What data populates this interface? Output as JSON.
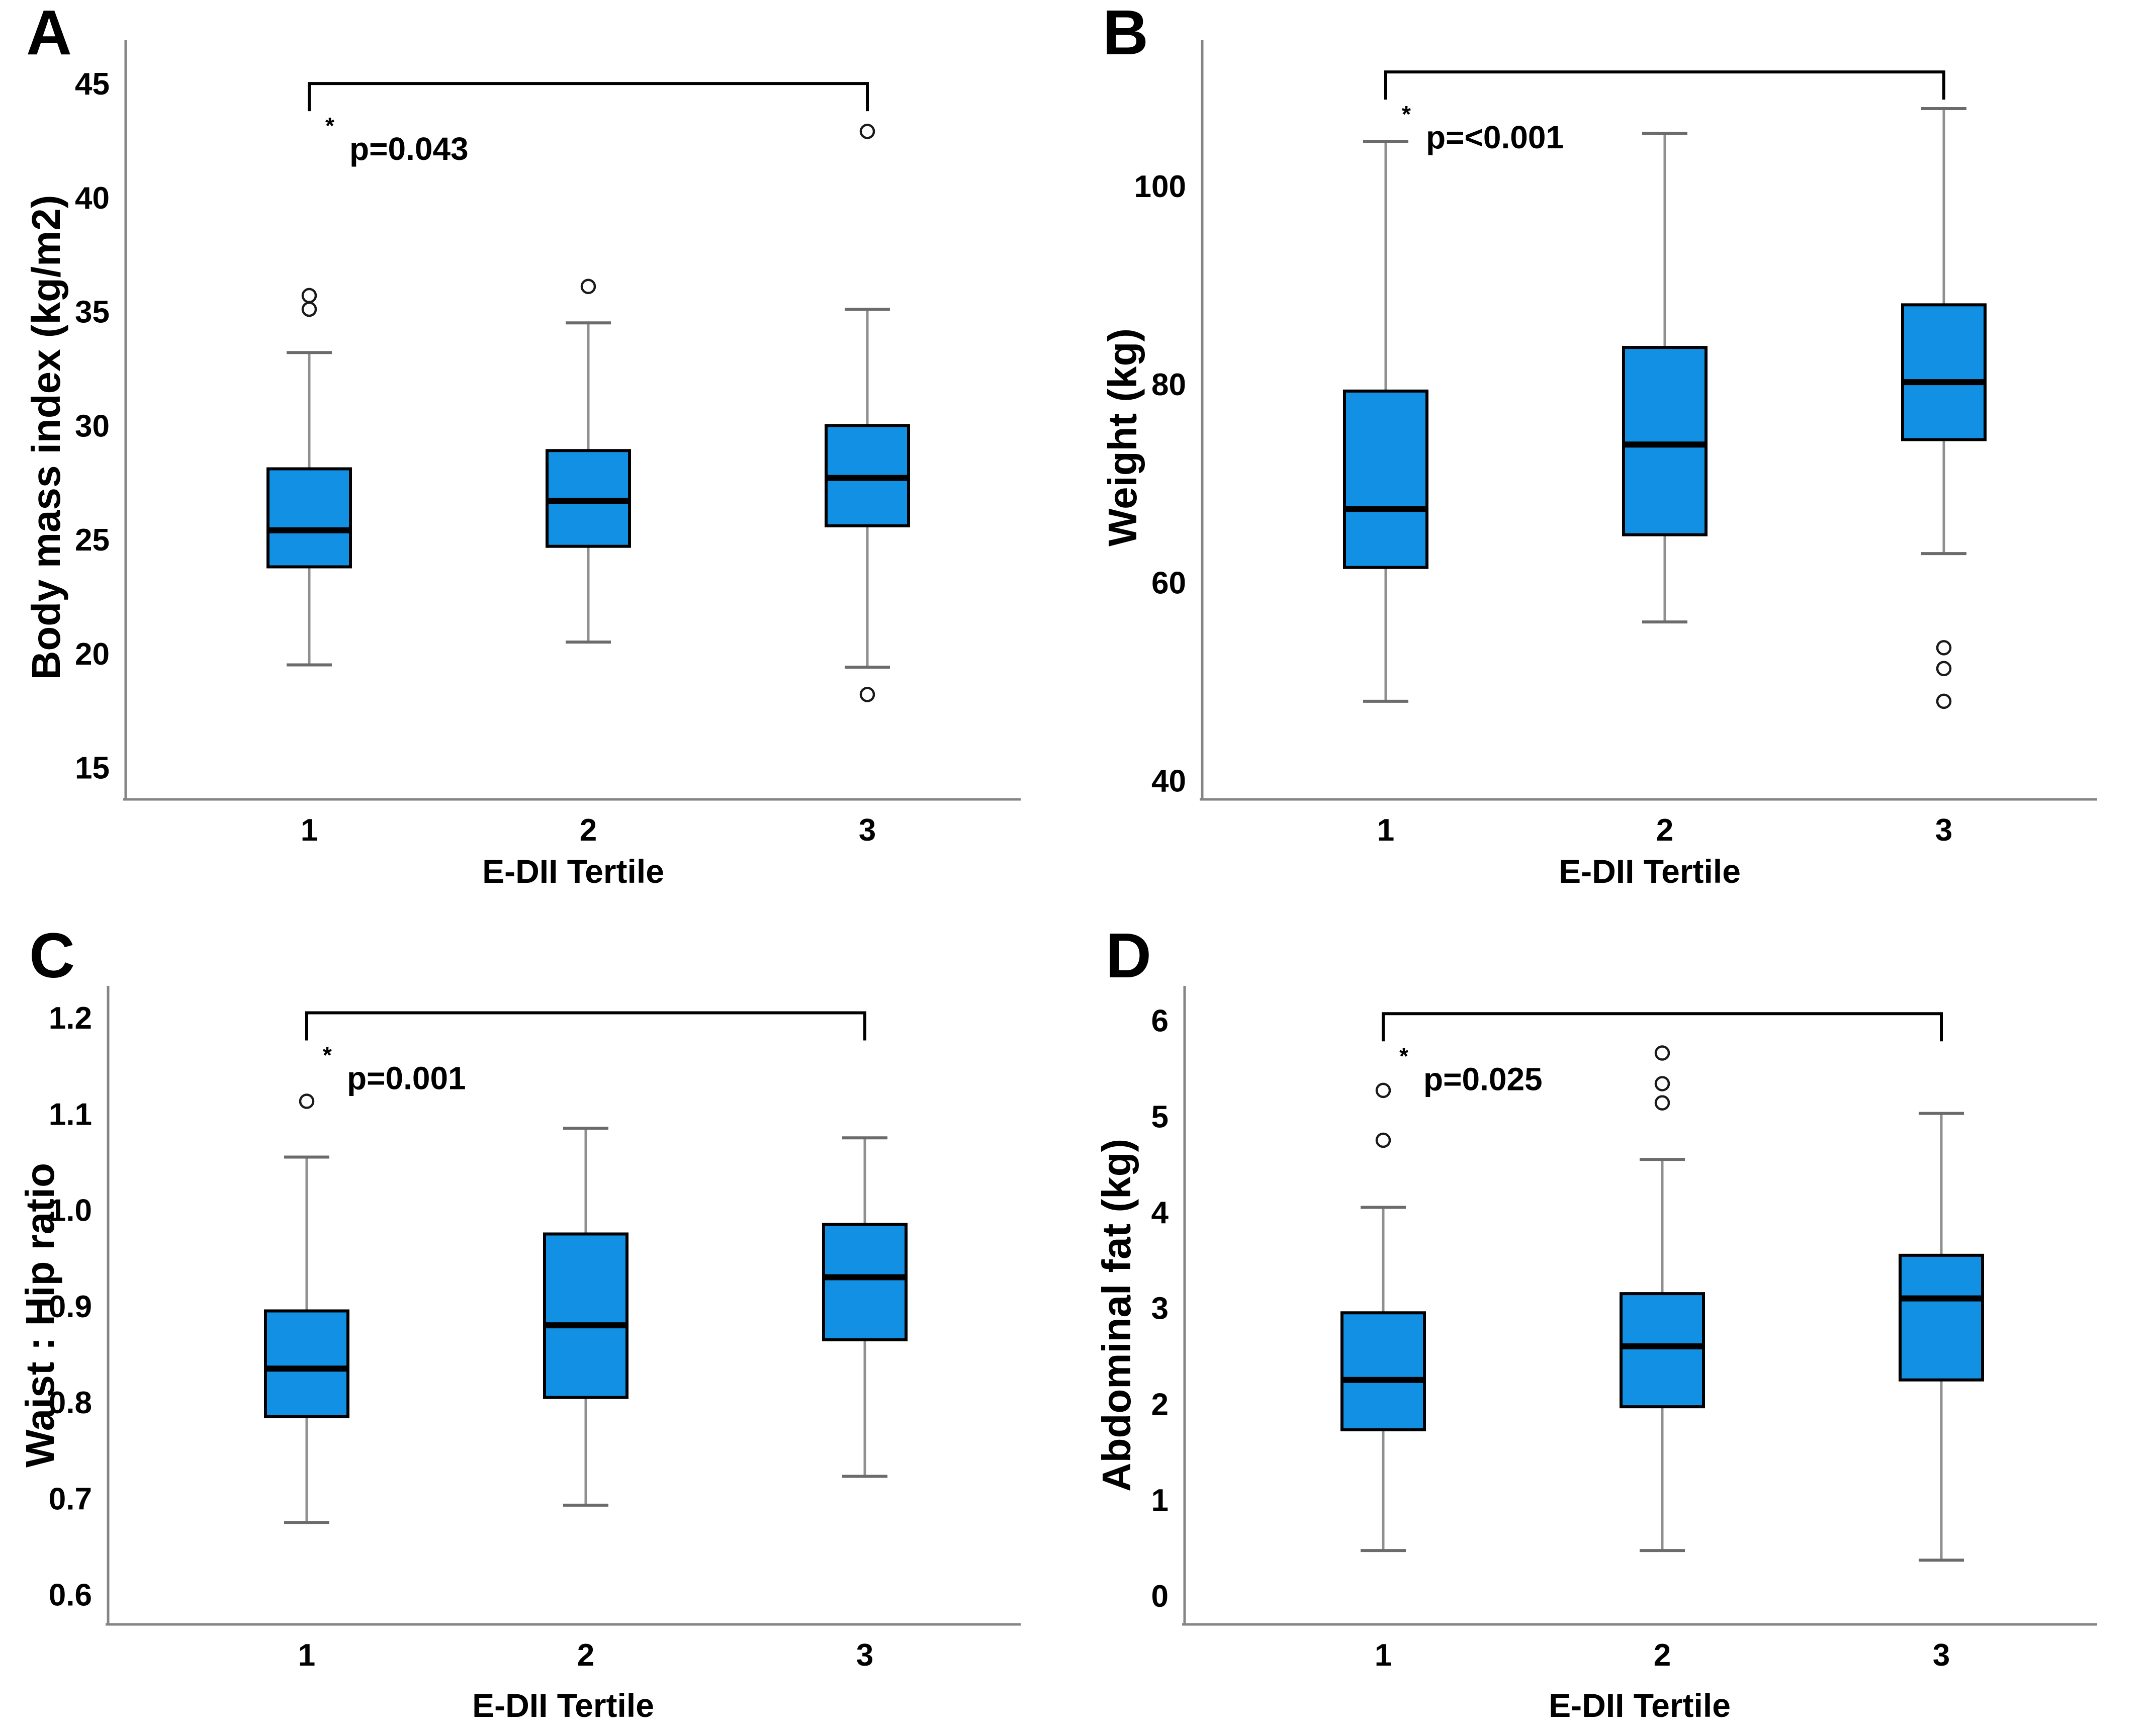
{
  "figure": {
    "background": "#ffffff",
    "box_fill": "#1291E4",
    "box_border": "#000000",
    "median_color": "#000000",
    "whisker_color": "#8f8f8f",
    "whisker_cap_color": "#6b6b6b",
    "axis_color": "#858585",
    "outlier_stroke": "#1a1a1a",
    "bracket_color": "#000000"
  },
  "chart_data": [
    {
      "type": "box",
      "panel": "A",
      "ylabel": "Body mass index  (kg/m2)",
      "xlabel": "E-DII Tertile",
      "categories": [
        "1",
        "2",
        "3"
      ],
      "ylim": [
        13.6,
        46.9
      ],
      "yticks": [
        15,
        20,
        25,
        30,
        35,
        40,
        45
      ],
      "ytick_labels": [
        "15",
        "20",
        "25",
        "30",
        "35",
        "40",
        "45"
      ],
      "significance": {
        "star": "*",
        "label": "p=0.043",
        "from": 0,
        "to": 2,
        "bracket_y": 45.0
      },
      "series": [
        {
          "category": "1",
          "whisker_low": 19.5,
          "q1": 23.8,
          "median": 25.4,
          "q3": 28.1,
          "whisker_high": 33.2,
          "outliers": [
            35.1,
            35.7
          ]
        },
        {
          "category": "2",
          "whisker_low": 20.5,
          "q1": 24.7,
          "median": 26.7,
          "q3": 28.9,
          "whisker_high": 34.5,
          "outliers": [
            36.1
          ]
        },
        {
          "category": "3",
          "whisker_low": 19.4,
          "q1": 25.6,
          "median": 27.7,
          "q3": 30.0,
          "whisker_high": 35.1,
          "outliers": [
            18.2,
            42.9
          ]
        }
      ]
    },
    {
      "type": "box",
      "panel": "B",
      "ylabel": "Weight  (kg)",
      "xlabel": "E-DII Tertile",
      "categories": [
        "1",
        "2",
        "3"
      ],
      "ylim": [
        38.1,
        114.7
      ],
      "yticks": [
        40,
        60,
        80,
        100
      ],
      "ytick_labels": [
        "40",
        "60",
        "80",
        "100"
      ],
      "significance": {
        "star": "*",
        "label": "p=<0.001",
        "from": 0,
        "to": 2,
        "bracket_y": 111.5
      },
      "series": [
        {
          "category": "1",
          "whisker_low": 48.0,
          "q1": 61.5,
          "median": 67.4,
          "q3": 79.3,
          "whisker_high": 104.5,
          "outliers": []
        },
        {
          "category": "2",
          "whisker_low": 56.0,
          "q1": 64.8,
          "median": 73.9,
          "q3": 83.7,
          "whisker_high": 105.3,
          "outliers": []
        },
        {
          "category": "3",
          "whisker_low": 62.9,
          "q1": 74.4,
          "median": 80.2,
          "q3": 88.0,
          "whisker_high": 107.8,
          "outliers": [
            53.4,
            51.3,
            48.0
          ]
        }
      ]
    },
    {
      "type": "box",
      "panel": "C",
      "ylabel": "Waist : Hip ratio",
      "xlabel": "E-DII Tertile",
      "categories": [
        "1",
        "2",
        "3"
      ],
      "ylim": [
        0.569,
        1.233
      ],
      "yticks": [
        0.6,
        0.7,
        0.8,
        0.9,
        1.0,
        1.1,
        1.2
      ],
      "ytick_labels": [
        "0.6",
        "0.7",
        "0.8",
        "0.9",
        "1.0",
        "1.1",
        "1.2"
      ],
      "significance": {
        "star": "*",
        "label": "p=0.001",
        "from": 0,
        "to": 2,
        "bracket_y": 1.205
      },
      "series": [
        {
          "category": "1",
          "whisker_low": 0.675,
          "q1": 0.785,
          "median": 0.835,
          "q3": 0.895,
          "whisker_high": 1.055,
          "outliers": [
            1.113
          ]
        },
        {
          "category": "2",
          "whisker_low": 0.693,
          "q1": 0.805,
          "median": 0.88,
          "q3": 0.975,
          "whisker_high": 1.085,
          "outliers": []
        },
        {
          "category": "3",
          "whisker_low": 0.723,
          "q1": 0.865,
          "median": 0.93,
          "q3": 0.985,
          "whisker_high": 1.075,
          "outliers": []
        }
      ]
    },
    {
      "type": "box",
      "panel": "D",
      "ylabel": "Abdominal fat  (kg)",
      "xlabel": "E-DII Tertile",
      "categories": [
        "1",
        "2",
        "3"
      ],
      "ylim": [
        -0.3,
        6.36
      ],
      "yticks": [
        0,
        1,
        2,
        3,
        4,
        5,
        6
      ],
      "ytick_labels": [
        "0",
        "1",
        "2",
        "3",
        "4",
        "5",
        "6"
      ],
      "significance": {
        "star": "*",
        "label": "p=0.025",
        "from": 0,
        "to": 2,
        "bracket_y": 6.07
      },
      "series": [
        {
          "category": "1",
          "whisker_low": 0.47,
          "q1": 1.73,
          "median": 2.25,
          "q3": 2.95,
          "whisker_high": 4.05,
          "outliers": [
            4.75,
            5.27
          ]
        },
        {
          "category": "2",
          "whisker_low": 0.47,
          "q1": 1.97,
          "median": 2.6,
          "q3": 3.15,
          "whisker_high": 4.55,
          "outliers": [
            5.14,
            5.34,
            5.66
          ]
        },
        {
          "category": "3",
          "whisker_low": 0.37,
          "q1": 2.25,
          "median": 3.1,
          "q3": 3.55,
          "whisker_high": 5.03,
          "outliers": []
        }
      ]
    }
  ]
}
